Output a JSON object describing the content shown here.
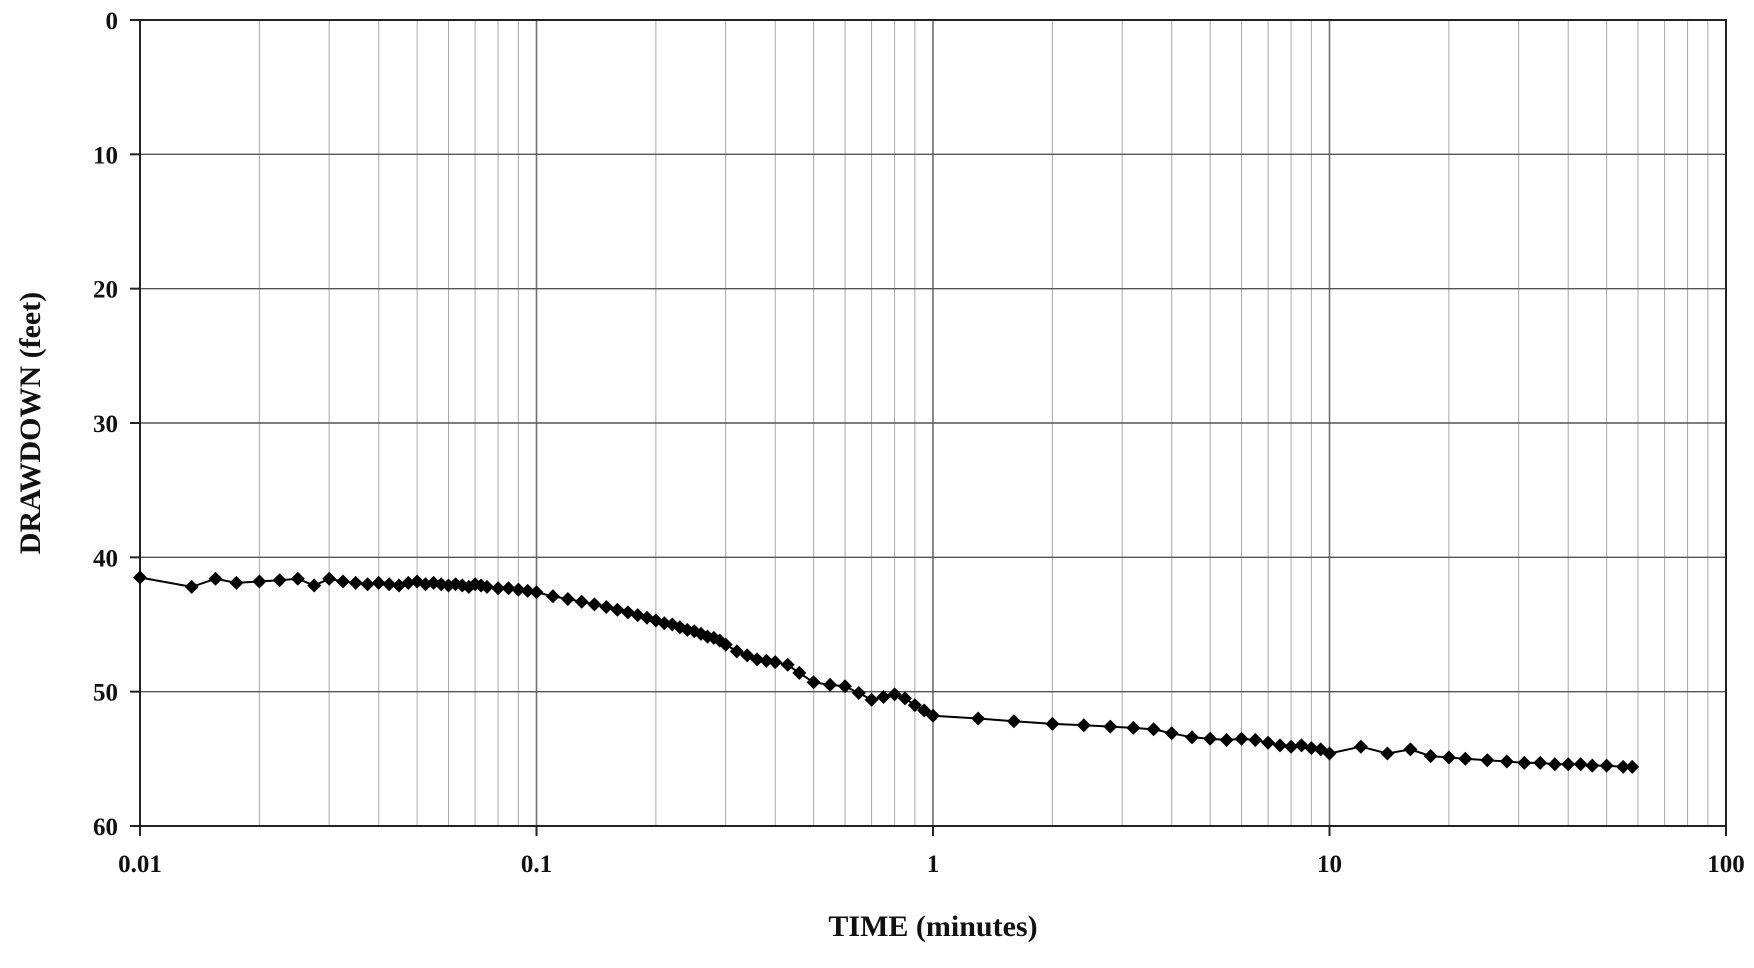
{
  "chart_data": {
    "type": "line",
    "title": "",
    "xlabel": "TIME (minutes)",
    "ylabel": "DRAWDOWN (feet)",
    "x_scale": "log",
    "xlim": [
      0.01,
      100
    ],
    "ylim": [
      0,
      60
    ],
    "y_inverted": true,
    "grid": true,
    "legend": "none",
    "x_ticks": [
      "0.01",
      "0.1",
      "1",
      "10",
      "100"
    ],
    "y_ticks": [
      "0",
      "10",
      "20",
      "30",
      "40",
      "50",
      "60"
    ],
    "marker": "diamond",
    "line_color": "#000000",
    "series": [
      {
        "x": [
          0.01,
          0.0135,
          0.0155,
          0.0175,
          0.02,
          0.0225,
          0.025,
          0.0275,
          0.03,
          0.0325,
          0.035,
          0.0375,
          0.04,
          0.0425,
          0.045,
          0.0475,
          0.05,
          0.0525,
          0.055,
          0.0575,
          0.06,
          0.0625,
          0.065,
          0.0675,
          0.07,
          0.0725,
          0.075,
          0.08,
          0.085,
          0.09,
          0.095,
          0.1,
          0.11,
          0.12,
          0.13,
          0.14,
          0.15,
          0.16,
          0.17,
          0.18,
          0.19,
          0.2,
          0.21,
          0.22,
          0.23,
          0.24,
          0.25,
          0.26,
          0.27,
          0.28,
          0.29,
          0.3,
          0.32,
          0.34,
          0.36,
          0.38,
          0.4,
          0.43,
          0.46,
          0.5,
          0.55,
          0.6,
          0.65,
          0.7,
          0.75,
          0.8,
          0.85,
          0.9,
          0.95,
          1.0,
          1.3,
          1.6,
          2.0,
          2.4,
          2.8,
          3.2,
          3.6,
          4.0,
          4.5,
          5.0,
          5.5,
          6.0,
          6.5,
          7.0,
          7.5,
          8.0,
          8.5,
          9.0,
          9.5,
          10.0,
          12.0,
          14.0,
          16.0,
          18.0,
          20.0,
          22.0,
          25.0,
          28.0,
          31.0,
          34.0,
          37.0,
          40.0,
          43.0,
          46.0,
          50.0,
          55.0,
          58.0
        ],
        "y": [
          41.5,
          42.2,
          41.6,
          41.9,
          41.8,
          41.7,
          41.6,
          42.1,
          41.6,
          41.8,
          41.9,
          42.0,
          41.9,
          42.0,
          42.1,
          41.9,
          41.8,
          42.0,
          41.9,
          42.0,
          42.1,
          42.0,
          42.1,
          42.2,
          42.0,
          42.1,
          42.2,
          42.3,
          42.3,
          42.4,
          42.5,
          42.6,
          42.9,
          43.1,
          43.3,
          43.5,
          43.7,
          43.9,
          44.1,
          44.3,
          44.5,
          44.7,
          44.9,
          45.0,
          45.2,
          45.4,
          45.5,
          45.7,
          45.9,
          46.0,
          46.2,
          46.5,
          47.0,
          47.3,
          47.6,
          47.7,
          47.8,
          48.0,
          48.6,
          49.3,
          49.5,
          49.6,
          50.1,
          50.6,
          50.4,
          50.2,
          50.5,
          51.0,
          51.4,
          51.8,
          52.0,
          52.2,
          52.4,
          52.5,
          52.6,
          52.7,
          52.8,
          53.1,
          53.4,
          53.5,
          53.6,
          53.5,
          53.6,
          53.8,
          54.0,
          54.1,
          54.0,
          54.2,
          54.3,
          54.6,
          54.1,
          54.6,
          54.3,
          54.8,
          54.9,
          55.0,
          55.1,
          55.2,
          55.3,
          55.3,
          55.4,
          55.4,
          55.4,
          55.5,
          55.5,
          55.6,
          55.6
        ]
      }
    ]
  }
}
